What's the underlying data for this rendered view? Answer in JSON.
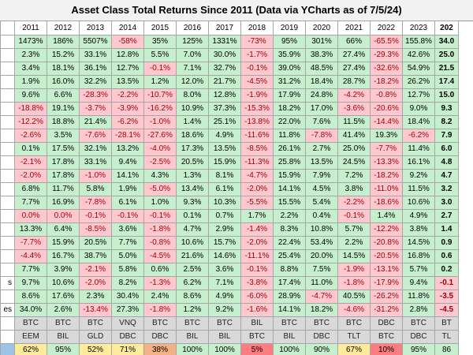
{
  "title": "Asset Class Total Returns Since 2011 (Data via YCharts as of 7/5/24)",
  "years": [
    "2011",
    "2012",
    "2013",
    "2014",
    "2015",
    "2016",
    "2017",
    "2018",
    "2019",
    "2020",
    "2021",
    "2022",
    "2023",
    "202"
  ],
  "rows": [
    {
      "label": "",
      "values": [
        "1473%",
        "186%",
        "5507%",
        "-58%",
        "35%",
        "125%",
        "1331%",
        "-73%",
        "95%",
        "301%",
        "66%",
        "-65.5%",
        "155.8%",
        "34.0"
      ]
    },
    {
      "label": "",
      "values": [
        "2.3%",
        "15.2%",
        "33.1%",
        "12.8%",
        "5.5%",
        "7.0%",
        "30.0%",
        "-1.7%",
        "35.9%",
        "38.3%",
        "27.4%",
        "-29.3%",
        "42.6%",
        "25.0"
      ]
    },
    {
      "label": "",
      "values": [
        "3.4%",
        "18.1%",
        "36.1%",
        "12.7%",
        "-0.1%",
        "7.1%",
        "32.7%",
        "-0.1%",
        "39.0%",
        "48.5%",
        "27.4%",
        "-32.6%",
        "54.9%",
        "21.5"
      ]
    },
    {
      "label": "",
      "values": [
        "1.9%",
        "16.0%",
        "32.2%",
        "13.5%",
        "1.2%",
        "12.0%",
        "21.7%",
        "-4.5%",
        "31.2%",
        "18.4%",
        "28.7%",
        "-18.2%",
        "26.2%",
        "17.4"
      ]
    },
    {
      "label": "",
      "values": [
        "9.6%",
        "6.6%",
        "-28.3%",
        "-2.2%",
        "-10.7%",
        "8.0%",
        "12.8%",
        "-1.9%",
        "17.9%",
        "24.8%",
        "-4.2%",
        "-0.8%",
        "12.7%",
        "15.0"
      ]
    },
    {
      "label": "",
      "values": [
        "-18.8%",
        "19.1%",
        "-3.7%",
        "-3.9%",
        "-16.2%",
        "10.9%",
        "37.3%",
        "-15.3%",
        "18.2%",
        "17.0%",
        "-3.6%",
        "-20.6%",
        "9.0%",
        "9.3"
      ]
    },
    {
      "label": "",
      "values": [
        "-12.2%",
        "18.8%",
        "21.4%",
        "-6.2%",
        "-1.0%",
        "1.4%",
        "25.1%",
        "-13.8%",
        "22.0%",
        "7.6%",
        "11.5%",
        "-14.4%",
        "18.4%",
        "8.2"
      ]
    },
    {
      "label": "",
      "values": [
        "-2.6%",
        "3.5%",
        "-7.6%",
        "-28.1%",
        "-27.6%",
        "18.6%",
        "4.9%",
        "-11.6%",
        "11.8%",
        "-7.8%",
        "41.4%",
        "19.3%",
        "-6.2%",
        "7.9"
      ]
    },
    {
      "label": "",
      "values": [
        "0.1%",
        "17.5%",
        "32.1%",
        "13.2%",
        "-4.0%",
        "17.3%",
        "13.5%",
        "-8.5%",
        "26.1%",
        "2.7%",
        "25.0%",
        "-7.7%",
        "11.4%",
        "6.0"
      ]
    },
    {
      "label": "",
      "values": [
        "-2.1%",
        "17.8%",
        "33.1%",
        "9.4%",
        "-2.5%",
        "20.5%",
        "15.9%",
        "-11.3%",
        "25.8%",
        "13.5%",
        "24.5%",
        "-13.3%",
        "16.1%",
        "4.8"
      ]
    },
    {
      "label": "",
      "values": [
        "-2.0%",
        "17.8%",
        "-1.0%",
        "14.1%",
        "4.3%",
        "1.3%",
        "8.1%",
        "-4.7%",
        "15.9%",
        "7.9%",
        "7.2%",
        "-18.2%",
        "9.2%",
        "4.7"
      ]
    },
    {
      "label": "",
      "values": [
        "6.8%",
        "11.7%",
        "5.8%",
        "1.9%",
        "-5.0%",
        "13.4%",
        "6.1%",
        "-2.0%",
        "14.1%",
        "4.5%",
        "3.8%",
        "-11.0%",
        "11.5%",
        "3.2"
      ]
    },
    {
      "label": "",
      "values": [
        "7.7%",
        "16.9%",
        "-7.8%",
        "6.1%",
        "1.0%",
        "9.3%",
        "10.3%",
        "-5.5%",
        "15.5%",
        "5.4%",
        "-2.2%",
        "-18.6%",
        "10.6%",
        "3.0"
      ]
    },
    {
      "label": "",
      "values": [
        "0.0%",
        "0.0%",
        "-0.1%",
        "-0.1%",
        "-0.1%",
        "0.1%",
        "0.7%",
        "1.7%",
        "2.2%",
        "0.4%",
        "-0.1%",
        "1.4%",
        "4.9%",
        "2.7"
      ]
    },
    {
      "label": "",
      "values": [
        "13.3%",
        "6.4%",
        "-8.5%",
        "3.6%",
        "-1.8%",
        "4.7%",
        "2.9%",
        "-1.4%",
        "8.3%",
        "10.8%",
        "5.7%",
        "-12.2%",
        "3.8%",
        "1.4"
      ]
    },
    {
      "label": "",
      "values": [
        "-7.7%",
        "15.9%",
        "20.5%",
        "7.7%",
        "-0.8%",
        "10.6%",
        "15.7%",
        "-2.0%",
        "22.4%",
        "53.4%",
        "2.2%",
        "-20.8%",
        "14.5%",
        "0.9"
      ]
    },
    {
      "label": "",
      "values": [
        "-4.4%",
        "16.7%",
        "38.7%",
        "5.0%",
        "-4.5%",
        "21.6%",
        "14.6%",
        "-11.1%",
        "25.4%",
        "20.0%",
        "14.5%",
        "-20.5%",
        "16.8%",
        "0.6"
      ]
    },
    {
      "label": "",
      "values": [
        "7.7%",
        "3.9%",
        "-2.1%",
        "5.8%",
        "0.6%",
        "2.5%",
        "3.6%",
        "-0.1%",
        "8.8%",
        "7.5%",
        "-1.9%",
        "-13.1%",
        "5.7%",
        "0.2"
      ]
    },
    {
      "label": "s",
      "values": [
        "9.7%",
        "10.6%",
        "-2.0%",
        "8.2%",
        "-1.3%",
        "6.2%",
        "7.1%",
        "-3.8%",
        "17.4%",
        "11.0%",
        "-1.8%",
        "-17.9%",
        "9.4%",
        "-0.1"
      ]
    },
    {
      "label": "",
      "values": [
        "8.6%",
        "17.6%",
        "2.3%",
        "30.4%",
        "2.4%",
        "8.6%",
        "4.9%",
        "-6.0%",
        "28.9%",
        "-4.7%",
        "40.5%",
        "-26.2%",
        "11.8%",
        "-3.5"
      ]
    },
    {
      "label": "es",
      "values": [
        "34.0%",
        "2.6%",
        "-13.4%",
        "27.3%",
        "-1.8%",
        "1.2%",
        "9.2%",
        "-1.6%",
        "14.1%",
        "18.2%",
        "-4.6%",
        "-31.2%",
        "2.8%",
        "-4.5"
      ]
    }
  ],
  "best": [
    "BTC",
    "BTC",
    "BTC",
    "VNQ",
    "BTC",
    "BTC",
    "BTC",
    "BIL",
    "BTC",
    "BTC",
    "BTC",
    "DBC",
    "BTC",
    "BT"
  ],
  "worst": [
    "EEM",
    "BIL",
    "GLD",
    "DBC",
    "DBC",
    "BIL",
    "BIL",
    "BTC",
    "BIL",
    "DBC",
    "TLT",
    "BTC",
    "DBC",
    "TL"
  ],
  "pct_label": "",
  "pct": [
    {
      "v": "62%",
      "c": "y"
    },
    {
      "v": "95%",
      "c": "g"
    },
    {
      "v": "52%",
      "c": "y"
    },
    {
      "v": "71%",
      "c": "y"
    },
    {
      "v": "38%",
      "c": "o"
    },
    {
      "v": "100%",
      "c": "g"
    },
    {
      "v": "100%",
      "c": "g"
    },
    {
      "v": "5%",
      "c": "r"
    },
    {
      "v": "100%",
      "c": "g"
    },
    {
      "v": "90%",
      "c": "g"
    },
    {
      "v": "67%",
      "c": "y"
    },
    {
      "v": "10%",
      "c": "r"
    },
    {
      "v": "95%",
      "c": "g"
    },
    {
      "v": "86",
      "c": "g"
    }
  ],
  "colors": {
    "positive": "#c6efce",
    "negative": "#ffc7ce",
    "negative_text": "#9c0006",
    "header_last": "#d0d0d0"
  }
}
